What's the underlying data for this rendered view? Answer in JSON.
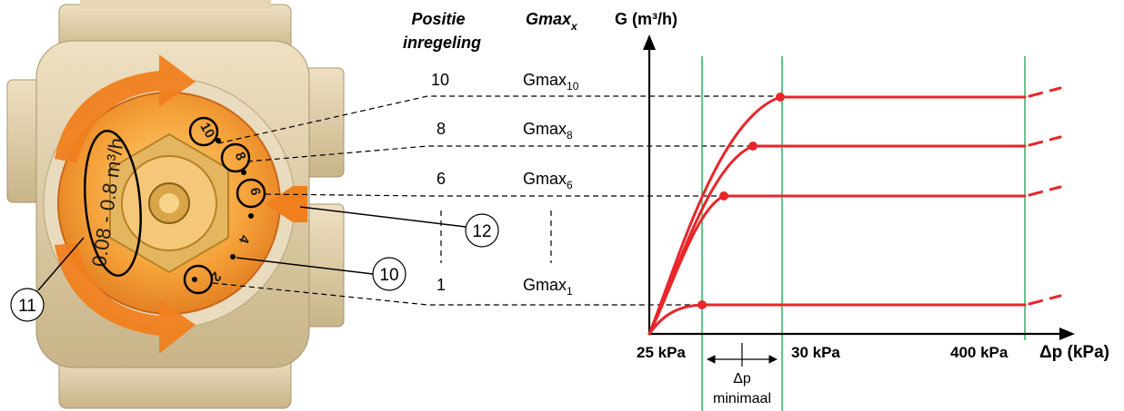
{
  "header": {
    "position_line1": "Positie",
    "position_line2": "inregeling",
    "gmax_base": "Gmax",
    "gmax_sub": "x",
    "y_axis_label": "G (m³/h)"
  },
  "positions": [
    {
      "position": "10",
      "gmax_base": "Gmax",
      "gmax_sub": "10"
    },
    {
      "position": "8",
      "gmax_base": "Gmax",
      "gmax_sub": "8"
    },
    {
      "position": "6",
      "gmax_base": "Gmax",
      "gmax_sub": "6"
    },
    {
      "position": "1",
      "gmax_base": "Gmax",
      "gmax_sub": "1"
    }
  ],
  "valve": {
    "range_label": "0.08 - 0.8 m³/h",
    "dial_numbers": [
      "10",
      "8",
      "6",
      "4",
      "2"
    ]
  },
  "callouts": {
    "c10": "10",
    "c11": "11",
    "c12": "12"
  },
  "axis": {
    "x_label": "Δp (kPa)",
    "ticks": [
      "25 kPa",
      "30 kPa",
      "400 kPa"
    ],
    "dp_line1": "Δp",
    "dp_line2": "minimaal"
  },
  "colors": {
    "curve": "#e8262a",
    "orange": "#f07f1e",
    "green": "#2fb36a",
    "valve_body": "#d9c7a0",
    "dial": "#f39a28"
  }
}
